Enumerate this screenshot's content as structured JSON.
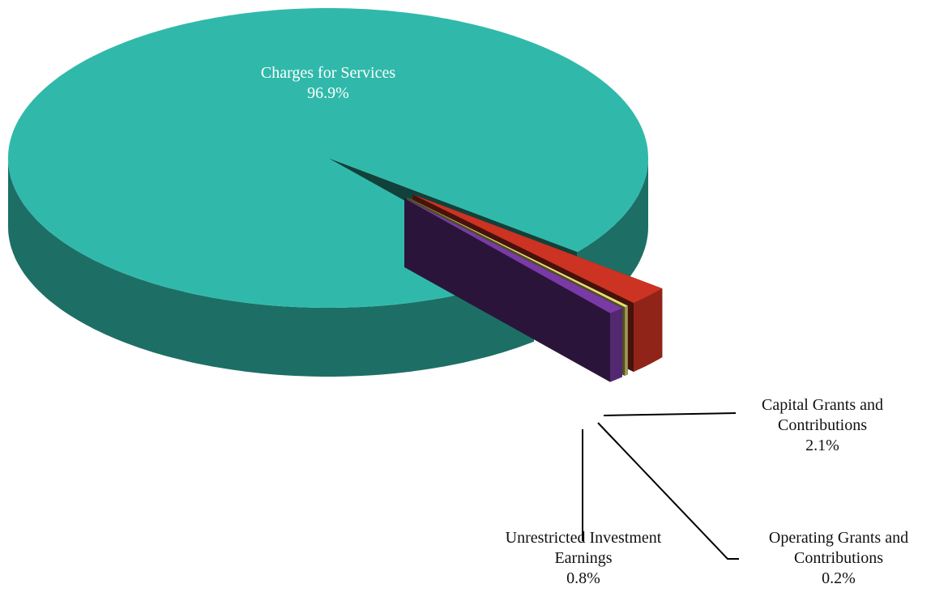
{
  "chart_data": {
    "type": "pie3d",
    "categories": [
      "Charges for Services",
      "Capital Grants and Contributions",
      "Operating Grants and Contributions",
      "Unrestricted Investment Earnings"
    ],
    "values": [
      96.9,
      2.1,
      0.2,
      0.8
    ],
    "value_labels": [
      "96.9%",
      "2.1%",
      "0.2%",
      "0.8%"
    ],
    "colors": [
      "#30b9aa",
      "#cc3322",
      "#e6df74",
      "#7a3aa6"
    ]
  }
}
